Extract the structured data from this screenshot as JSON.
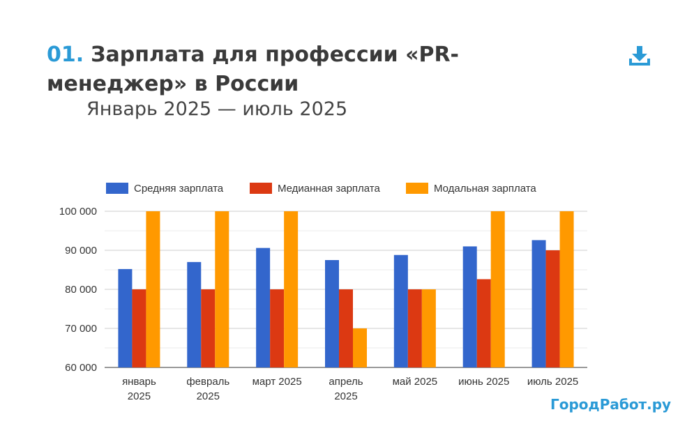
{
  "header": {
    "number": "01.",
    "title": "Зарплата для профессии «PR-менеджер» в России",
    "subtitle": "Январь 2025 — июль 2025",
    "download_icon": "download-icon"
  },
  "brand": "ГородРабот.ру",
  "chart_data": {
    "type": "bar",
    "categories": [
      [
        "январь",
        "2025"
      ],
      [
        "февраль",
        "2025"
      ],
      [
        "март 2025"
      ],
      [
        "апрель",
        "2025"
      ],
      [
        "май 2025"
      ],
      [
        "июнь 2025"
      ],
      [
        "июль 2025"
      ]
    ],
    "series": [
      {
        "name": "Средняя зарплата",
        "color": "#3366cc",
        "values": [
          85200,
          87000,
          90600,
          87500,
          88800,
          91000,
          92600
        ]
      },
      {
        "name": "Медианная зарплата",
        "color": "#dc3912",
        "values": [
          80000,
          80000,
          80000,
          80000,
          80000,
          82600,
          90000
        ]
      },
      {
        "name": "Модальная зарплата",
        "color": "#ff9900",
        "values": [
          100000,
          100000,
          100000,
          70000,
          80000,
          100000,
          100000
        ]
      }
    ],
    "ylim": [
      60000,
      100000
    ],
    "yticks": [
      60000,
      70000,
      80000,
      90000,
      100000
    ],
    "ytick_labels": [
      "60 000",
      "70 000",
      "80 000",
      "90 000",
      "100 000"
    ],
    "legend_position": "top",
    "grid": true
  }
}
